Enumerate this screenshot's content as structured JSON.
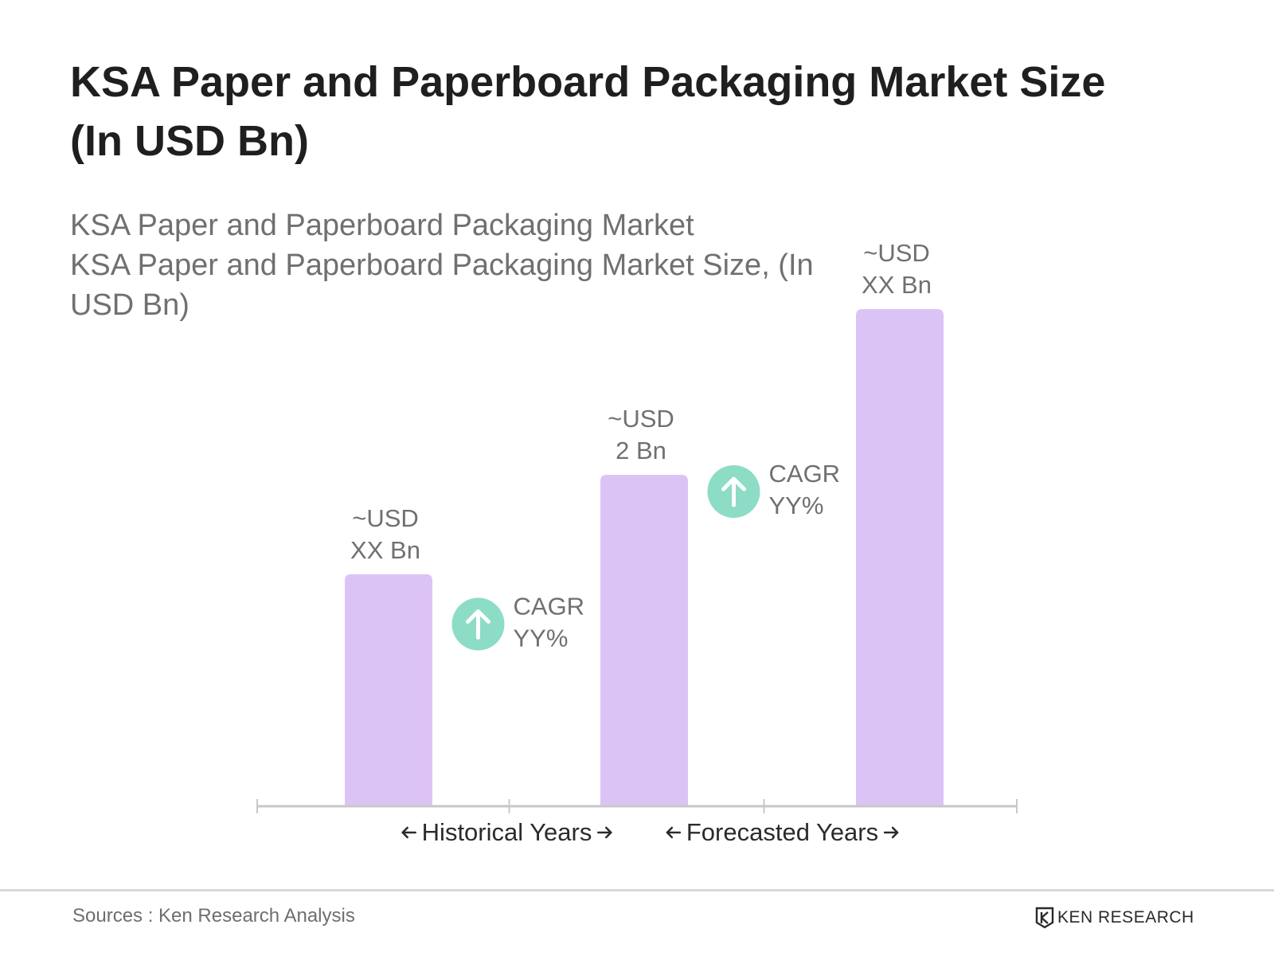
{
  "title_line1": "KSA Paper and Paperboard Packaging Market Size",
  "title_line2": "(In USD Bn)",
  "subtitle_line1": "KSA Paper and Paperboard Packaging Market",
  "subtitle_line2": "KSA Paper and Paperboard Packaging Market Size, (In",
  "subtitle_line3": "USD Bn)",
  "chart_data": {
    "type": "bar",
    "categories": [
      "",
      "",
      ""
    ],
    "values": [
      1.4,
      2,
      3
    ],
    "bar_labels": [
      [
        "~USD",
        "XX Bn"
      ],
      [
        "~USD",
        "2 Bn"
      ],
      [
        "~USD",
        "XX Bn"
      ]
    ],
    "ylim": [
      0,
      3
    ],
    "grid": false,
    "annotations": [
      {
        "between": [
          0,
          1
        ],
        "lines": [
          "CAGR",
          "YY%"
        ],
        "icon": "arrow-up-circle-icon"
      },
      {
        "between": [
          1,
          2
        ],
        "lines": [
          "CAGR",
          "YY%"
        ],
        "icon": "arrow-up-circle-icon"
      }
    ],
    "periods": [
      {
        "label": "Historical Years"
      },
      {
        "label": "Forecasted Years"
      }
    ],
    "colors": {
      "bar": "#dcc3f6",
      "icon": "#8ddcc6",
      "axis": "#c8c8c8",
      "label": "#707070"
    }
  },
  "footer": {
    "source": "Sources : Ken Research Analysis",
    "logo_text": "KEN RESEARCH",
    "logo_icon": "ken-research-logo-icon"
  }
}
